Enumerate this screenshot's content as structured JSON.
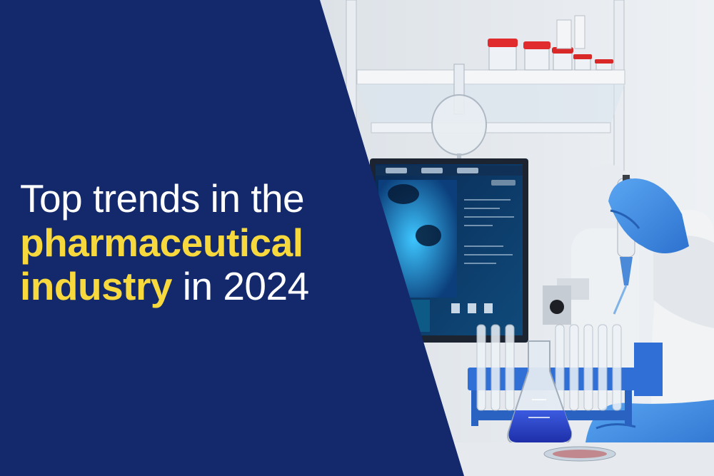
{
  "banner": {
    "headline": {
      "line1": "Top trends in the",
      "line2_highlight": "pharmaceutical",
      "line3_highlight": "industry",
      "line3_rest": " in 2024"
    }
  },
  "colors": {
    "panel": "#13296b",
    "highlight": "#f7d83d",
    "text": "#ffffff",
    "glove": "#3a86e0",
    "rack": "#2f6fd6",
    "liquid": "#2a44c8"
  }
}
